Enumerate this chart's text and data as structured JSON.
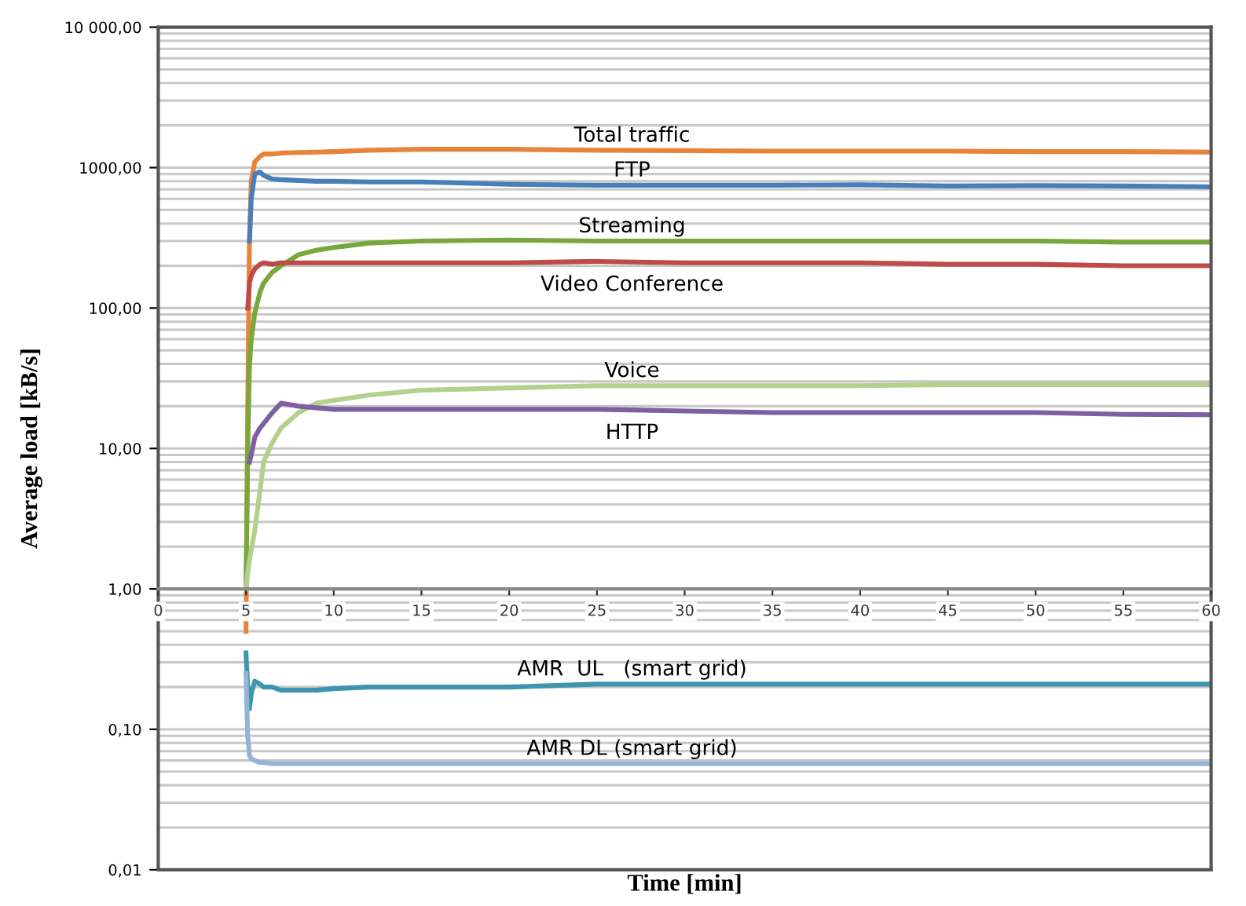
{
  "chart_data": {
    "type": "line",
    "xlabel": "Time [min]",
    "ylabel": "Average load [kB/s]",
    "log": "y",
    "grid": "y",
    "marker": "none",
    "line_style": "solid",
    "xlim": [
      0,
      60
    ],
    "xticks": [
      0,
      5,
      10,
      15,
      20,
      25,
      30,
      35,
      40,
      45,
      50,
      55,
      60
    ],
    "ylim": [
      0.01,
      10000
    ],
    "yticks": [
      {
        "value": 0.01,
        "label": "0,01"
      },
      {
        "value": 0.1,
        "label": "0,10"
      },
      {
        "value": 1,
        "label": "1,00"
      },
      {
        "value": 10,
        "label": "10,00"
      },
      {
        "value": 100,
        "label": "100,00"
      },
      {
        "value": 1000,
        "label": "1000,00"
      },
      {
        "value": 10000,
        "label": "10 000,00"
      }
    ],
    "x": [
      5,
      5.1,
      5.2,
      5.3,
      5.5,
      5.8,
      6,
      6.5,
      7,
      8,
      9,
      10,
      12,
      15,
      20,
      25,
      30,
      35,
      40,
      45,
      50,
      55,
      60
    ],
    "series": [
      {
        "name": "Total traffic",
        "color": "#e8843a",
        "values": [
          0.5,
          20,
          300,
          800,
          1100,
          1200,
          1250,
          1250,
          1270,
          1280,
          1290,
          1300,
          1330,
          1350,
          1350,
          1330,
          1320,
          1310,
          1310,
          1310,
          1300,
          1300,
          1290
        ]
      },
      {
        "name": "FTP",
        "color": "#4a7ebb",
        "values": [
          null,
          null,
          300,
          600,
          900,
          930,
          880,
          830,
          820,
          810,
          800,
          800,
          790,
          790,
          760,
          750,
          750,
          750,
          755,
          740,
          745,
          740,
          730
        ]
      },
      {
        "name": "Streaming",
        "color": "#77a83c",
        "values": [
          1,
          10,
          39,
          60,
          92,
          130,
          150,
          180,
          200,
          240,
          258,
          270,
          290,
          300,
          305,
          300,
          300,
          300,
          300,
          300,
          300,
          295,
          295
        ]
      },
      {
        "name": "Video Conference",
        "color": "#be4b48",
        "values": [
          null,
          100,
          150,
          170,
          190,
          205,
          210,
          205,
          210,
          210,
          210,
          210,
          210,
          210,
          210,
          215,
          210,
          210,
          210,
          205,
          205,
          200,
          200
        ]
      },
      {
        "name": "Voice",
        "color": "#b3d08c",
        "values": [
          1,
          1.3,
          1.6,
          1.9,
          2.6,
          5,
          8,
          11,
          14,
          18,
          21,
          22,
          24,
          26,
          27,
          28,
          28,
          28,
          28,
          28.5,
          28.5,
          28.5,
          28.5
        ]
      },
      {
        "name": "HTTP",
        "color": "#7d60a0",
        "values": [
          null,
          null,
          8,
          9,
          12,
          14,
          15,
          18,
          21,
          20,
          19.5,
          19,
          19,
          19,
          19,
          19,
          18.5,
          18,
          18,
          18,
          18,
          17.5,
          17.4
        ]
      },
      {
        "name": "AMR  UL   (smart grid)",
        "color": "#3d96ae",
        "values": [
          0.35,
          0.2,
          0.14,
          0.18,
          0.22,
          0.21,
          0.2,
          0.2,
          0.19,
          0.19,
          0.19,
          0.195,
          0.2,
          0.2,
          0.2,
          0.21,
          0.21,
          0.21,
          0.21,
          0.21,
          0.21,
          0.21,
          0.21
        ]
      },
      {
        "name": "AMR DL (smart grid)",
        "color": "#95b3d7",
        "values": [
          0.25,
          0.09,
          0.065,
          0.062,
          0.06,
          0.058,
          0.058,
          0.057,
          0.057,
          0.057,
          0.057,
          0.057,
          0.057,
          0.057,
          0.057,
          0.057,
          0.057,
          0.057,
          0.057,
          0.057,
          0.057,
          0.057,
          0.057
        ]
      }
    ]
  }
}
